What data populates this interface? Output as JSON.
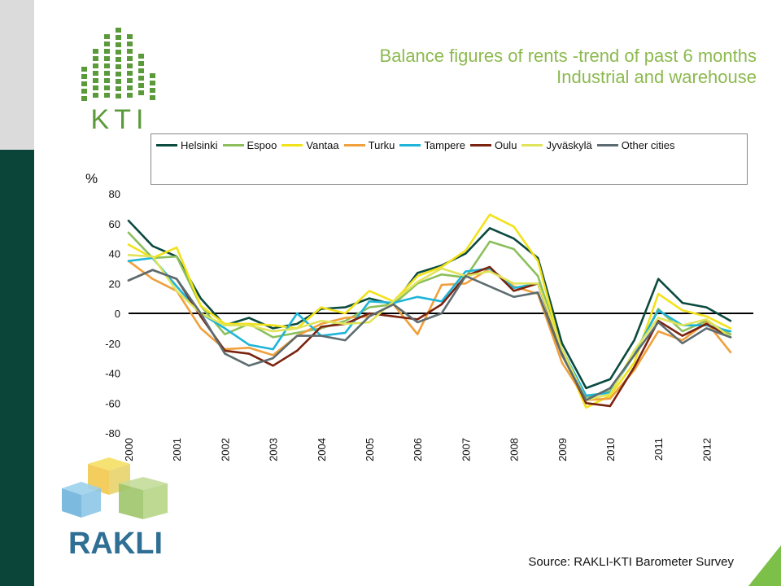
{
  "title": {
    "line1": "Balance figures of rents -trend of past 6 months",
    "line2": "Industrial and warehouse"
  },
  "logos": {
    "kti": "KTI",
    "rakli": "RAKLI"
  },
  "source": "Source: RAKLI-KTI Barometer Survey",
  "colors": {
    "title": "#8cba4e",
    "dark_bar": "#0b4438",
    "zero_line": "#000000",
    "kti_green": "#5b9a3a",
    "rakli_blue": "#2f6f94"
  },
  "chart_data": {
    "type": "line",
    "ylabel": "%",
    "ylim": [
      -80,
      80
    ],
    "yticks": [
      80,
      60,
      40,
      20,
      0,
      -20,
      -40,
      -60,
      -80
    ],
    "xlim": [
      2000,
      2012.5
    ],
    "xticks": [
      "2000",
      "2001",
      "2002",
      "2003",
      "2004",
      "2005",
      "2006",
      "2007",
      "2008",
      "2009",
      "2010",
      "2011",
      "2012"
    ],
    "grid": false,
    "legend_position": "top",
    "x": [
      2000,
      2000.25,
      2000.5,
      2000.75,
      2001,
      2001.25,
      2001.5,
      2001.75,
      2002,
      2002.25,
      2002.5,
      2002.75,
      2003,
      2003.25,
      2003.5,
      2003.75,
      2004,
      2004.25,
      2004.5,
      2004.75,
      2005,
      2005.25,
      2005.5,
      2005.75,
      2006,
      2006.25,
      2006.5,
      2006.75,
      2007,
      2007.25,
      2007.5,
      2007.75,
      2008,
      2008.25,
      2008.5,
      2008.75,
      2009,
      2009.25,
      2009.5,
      2009.75,
      2010,
      2010.25,
      2010.5,
      2010.75,
      2011,
      2011.25,
      2011.5,
      2011.75,
      2012,
      2012.25,
      2012.5
    ],
    "series": [
      {
        "name": "Helsinki",
        "color": "#0b4a3f",
        "points": [
          [
            2000,
            62
          ],
          [
            2000.5,
            45
          ],
          [
            2001,
            38
          ],
          [
            2001.5,
            10
          ],
          [
            2002,
            -8
          ],
          [
            2002.5,
            -3
          ],
          [
            2003,
            -10
          ],
          [
            2003.5,
            -7
          ],
          [
            2004,
            3
          ],
          [
            2004.5,
            4
          ],
          [
            2005,
            10
          ],
          [
            2005.5,
            6
          ],
          [
            2006,
            27
          ],
          [
            2006.5,
            32
          ],
          [
            2007,
            40
          ],
          [
            2007.5,
            57
          ],
          [
            2008,
            50
          ],
          [
            2008.5,
            37
          ],
          [
            2009,
            -20
          ],
          [
            2009.5,
            -50
          ],
          [
            2010,
            -44
          ],
          [
            2010.5,
            -18
          ],
          [
            2011,
            23
          ],
          [
            2011.5,
            7
          ],
          [
            2012,
            4
          ],
          [
            2012.5,
            -5
          ]
        ]
      },
      {
        "name": "Espoo",
        "color": "#8cbf5c",
        "points": [
          [
            2000,
            54
          ],
          [
            2000.5,
            37
          ],
          [
            2001,
            38
          ],
          [
            2001.5,
            5
          ],
          [
            2002,
            -14
          ],
          [
            2002.5,
            -7
          ],
          [
            2003,
            -16
          ],
          [
            2003.5,
            -13
          ],
          [
            2004,
            -10
          ],
          [
            2004.5,
            -5
          ],
          [
            2005,
            4
          ],
          [
            2005.5,
            6
          ],
          [
            2006,
            20
          ],
          [
            2006.5,
            26
          ],
          [
            2007,
            24
          ],
          [
            2007.5,
            48
          ],
          [
            2008,
            43
          ],
          [
            2008.5,
            25
          ],
          [
            2009,
            -25
          ],
          [
            2009.5,
            -56
          ],
          [
            2010,
            -52
          ],
          [
            2010.5,
            -28
          ],
          [
            2011,
            3
          ],
          [
            2011.5,
            -12
          ],
          [
            2012,
            -5
          ],
          [
            2012.5,
            -14
          ]
        ]
      },
      {
        "name": "Vantaa",
        "color": "#f2e21a",
        "points": [
          [
            2000,
            46
          ],
          [
            2000.5,
            37
          ],
          [
            2001,
            44
          ],
          [
            2001.5,
            5
          ],
          [
            2002,
            -7
          ],
          [
            2002.5,
            -7
          ],
          [
            2003,
            -8
          ],
          [
            2003.5,
            -10
          ],
          [
            2004,
            4
          ],
          [
            2004.5,
            0
          ],
          [
            2005,
            15
          ],
          [
            2005.5,
            8
          ],
          [
            2006,
            25
          ],
          [
            2006.5,
            31
          ],
          [
            2007,
            42
          ],
          [
            2007.5,
            66
          ],
          [
            2008,
            58
          ],
          [
            2008.5,
            35
          ],
          [
            2009,
            -26
          ],
          [
            2009.5,
            -63
          ],
          [
            2010,
            -55
          ],
          [
            2010.5,
            -33
          ],
          [
            2011,
            13
          ],
          [
            2011.5,
            2
          ],
          [
            2012,
            -2
          ],
          [
            2012.5,
            -10
          ]
        ]
      },
      {
        "name": "Turku",
        "color": "#f0a03c",
        "points": [
          [
            2000,
            35
          ],
          [
            2000.5,
            23
          ],
          [
            2001,
            15
          ],
          [
            2001.5,
            -10
          ],
          [
            2002,
            -24
          ],
          [
            2002.5,
            -23
          ],
          [
            2003,
            -28
          ],
          [
            2003.5,
            -15
          ],
          [
            2004,
            -7
          ],
          [
            2004.5,
            -3
          ],
          [
            2005,
            -2
          ],
          [
            2005.5,
            6
          ],
          [
            2006,
            -14
          ],
          [
            2006.5,
            19
          ],
          [
            2007,
            20
          ],
          [
            2007.5,
            30
          ],
          [
            2008,
            18
          ],
          [
            2008.5,
            13
          ],
          [
            2009,
            -33
          ],
          [
            2009.5,
            -58
          ],
          [
            2010,
            -57
          ],
          [
            2010.5,
            -38
          ],
          [
            2011,
            -12
          ],
          [
            2011.5,
            -18
          ],
          [
            2012,
            -6
          ],
          [
            2012.5,
            -26
          ]
        ]
      },
      {
        "name": "Tampere",
        "color": "#1fb5d8",
        "points": [
          [
            2000,
            35
          ],
          [
            2000.5,
            37
          ],
          [
            2001,
            18
          ],
          [
            2001.5,
            0
          ],
          [
            2002,
            -10
          ],
          [
            2002.5,
            -21
          ],
          [
            2003,
            -24
          ],
          [
            2003.5,
            0
          ],
          [
            2004,
            -15
          ],
          [
            2004.5,
            -13
          ],
          [
            2005,
            8
          ],
          [
            2005.5,
            7
          ],
          [
            2006,
            11
          ],
          [
            2006.5,
            8
          ],
          [
            2007,
            28
          ],
          [
            2007.5,
            30
          ],
          [
            2008,
            17
          ],
          [
            2008.5,
            20
          ],
          [
            2009,
            -24
          ],
          [
            2009.5,
            -55
          ],
          [
            2010,
            -53
          ],
          [
            2010.5,
            -27
          ],
          [
            2011,
            2
          ],
          [
            2011.5,
            -8
          ],
          [
            2012,
            -8
          ],
          [
            2012.5,
            -12
          ]
        ]
      },
      {
        "name": "Oulu",
        "color": "#7a2410",
        "points": [
          [
            2000,
            22
          ],
          [
            2000.5,
            29
          ],
          [
            2001,
            23
          ],
          [
            2001.5,
            -2
          ],
          [
            2002,
            -25
          ],
          [
            2002.5,
            -27
          ],
          [
            2003,
            -35
          ],
          [
            2003.5,
            -25
          ],
          [
            2004,
            -9
          ],
          [
            2004.5,
            -7
          ],
          [
            2005,
            0
          ],
          [
            2005.5,
            -2
          ],
          [
            2006,
            -4
          ],
          [
            2006.5,
            6
          ],
          [
            2007,
            25
          ],
          [
            2007.5,
            31
          ],
          [
            2008,
            15
          ],
          [
            2008.5,
            20
          ],
          [
            2009,
            -26
          ],
          [
            2009.5,
            -60
          ],
          [
            2010,
            -62
          ],
          [
            2010.5,
            -36
          ],
          [
            2011,
            -5
          ],
          [
            2011.5,
            -15
          ],
          [
            2012,
            -7
          ],
          [
            2012.5,
            -16
          ]
        ]
      },
      {
        "name": "Jyväskylä",
        "color": "#e0e45a",
        "points": [
          [
            2000,
            39
          ],
          [
            2000.5,
            38
          ],
          [
            2001,
            15
          ],
          [
            2001.5,
            0
          ],
          [
            2002,
            -8
          ],
          [
            2002.5,
            -8
          ],
          [
            2003,
            -12
          ],
          [
            2003.5,
            -10
          ],
          [
            2004,
            -5
          ],
          [
            2004.5,
            -7
          ],
          [
            2005,
            -6
          ],
          [
            2005.5,
            8
          ],
          [
            2006,
            21
          ],
          [
            2006.5,
            30
          ],
          [
            2007,
            25
          ],
          [
            2007.5,
            28
          ],
          [
            2008,
            20
          ],
          [
            2008.5,
            20
          ],
          [
            2009,
            -24
          ],
          [
            2009.5,
            -58
          ],
          [
            2010,
            -54
          ],
          [
            2010.5,
            -25
          ],
          [
            2011,
            -3
          ],
          [
            2011.5,
            -8
          ],
          [
            2012,
            -4
          ],
          [
            2012.5,
            -16
          ]
        ]
      },
      {
        "name": "Other cities",
        "color": "#5d6c70",
        "points": [
          [
            2000,
            22
          ],
          [
            2000.5,
            29
          ],
          [
            2001,
            23
          ],
          [
            2001.5,
            0
          ],
          [
            2002,
            -27
          ],
          [
            2002.5,
            -35
          ],
          [
            2003,
            -30
          ],
          [
            2003.5,
            -15
          ],
          [
            2004,
            -15
          ],
          [
            2004.5,
            -18
          ],
          [
            2005,
            -2
          ],
          [
            2005.5,
            6
          ],
          [
            2006,
            -6
          ],
          [
            2006.5,
            0
          ],
          [
            2007,
            25
          ],
          [
            2007.5,
            18
          ],
          [
            2008,
            11
          ],
          [
            2008.5,
            14
          ],
          [
            2009,
            -28
          ],
          [
            2009.5,
            -58
          ],
          [
            2010,
            -50
          ],
          [
            2010.5,
            -28
          ],
          [
            2011,
            -6
          ],
          [
            2011.5,
            -20
          ],
          [
            2012,
            -10
          ],
          [
            2012.5,
            -16
          ]
        ]
      }
    ]
  }
}
